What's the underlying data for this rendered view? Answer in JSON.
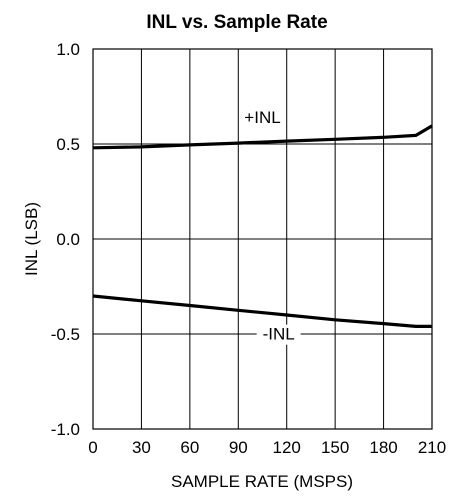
{
  "chart_data": {
    "type": "line",
    "title": "INL vs. Sample Rate",
    "xlabel": "SAMPLE RATE (MSPS)",
    "ylabel": "INL (LSB)",
    "xlim": [
      0,
      210
    ],
    "ylim": [
      -1.0,
      1.0
    ],
    "x_ticks": [
      0,
      30,
      60,
      90,
      120,
      150,
      180,
      210
    ],
    "x_tick_labels": [
      "0",
      "30",
      "60",
      "90",
      "120",
      "150",
      "180",
      "210"
    ],
    "y_ticks": [
      -1.0,
      -0.5,
      0.0,
      0.5,
      1.0
    ],
    "y_tick_labels": [
      "-1.0",
      "-0.5",
      "0.0",
      "0.5",
      "1.0"
    ],
    "grid": true,
    "series": [
      {
        "name": "+INL",
        "x": [
          0,
          30,
          60,
          90,
          120,
          150,
          180,
          200,
          210
        ],
        "y": [
          0.48,
          0.485,
          0.495,
          0.505,
          0.515,
          0.525,
          0.535,
          0.545,
          0.595
        ]
      },
      {
        "name": "-INL",
        "x": [
          0,
          30,
          60,
          90,
          120,
          150,
          180,
          200,
          210
        ],
        "y": [
          -0.3,
          -0.325,
          -0.35,
          -0.375,
          -0.4,
          -0.425,
          -0.445,
          -0.46,
          -0.46
        ]
      }
    ],
    "annotations": [
      {
        "text": "+INL",
        "x": 105,
        "y": 0.61
      },
      {
        "text": "-INL",
        "x": 115,
        "y": -0.53
      }
    ]
  }
}
